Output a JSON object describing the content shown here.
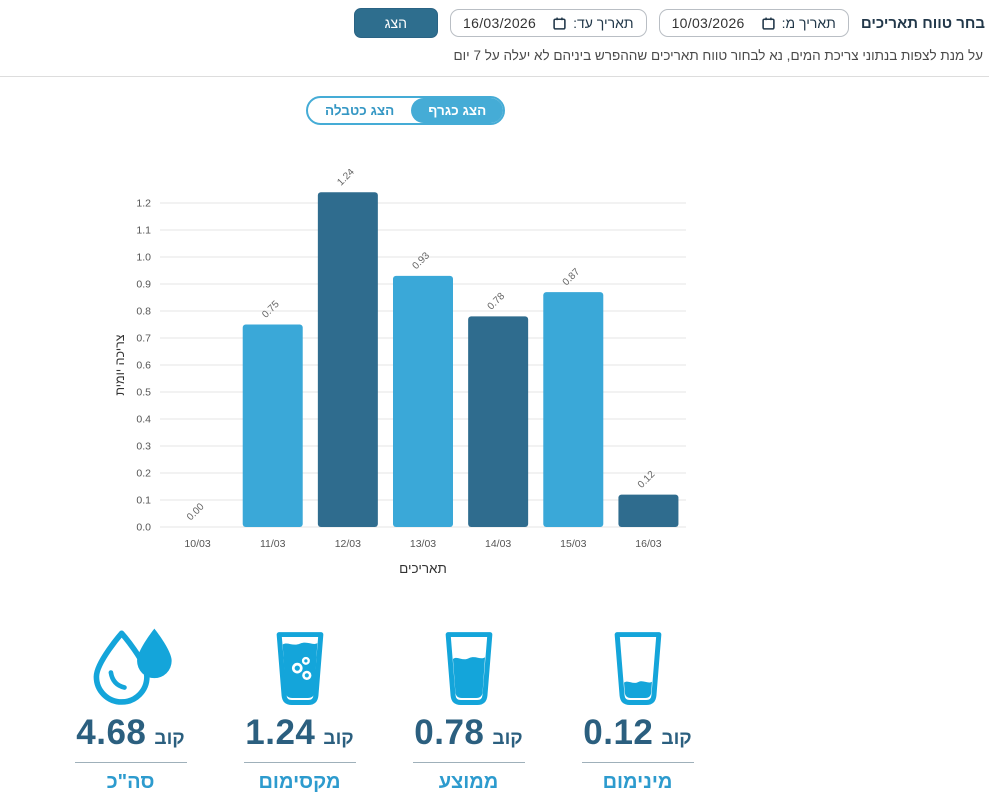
{
  "header": {
    "title": "בחר טווח תאריכים",
    "date_from": {
      "label": "תאריך מ:",
      "value": "10/03/2026"
    },
    "date_to": {
      "label": "תאריך עד:",
      "value": "16/03/2026"
    },
    "show_button": "הצג",
    "subtitle": "על מנת לצפות בנתוני צריכת המים, נא לבחור טווח תאריכים שההפרש ביניהם לא יעלה על 7 יום"
  },
  "view_toggle": {
    "graph_label": "הצג כגרף",
    "table_label": "הצג כטבלה",
    "active": "graph"
  },
  "chart_data": {
    "type": "bar",
    "categories": [
      "10/03",
      "11/03",
      "12/03",
      "13/03",
      "14/03",
      "15/03",
      "16/03"
    ],
    "values": [
      0.0,
      0.75,
      1.24,
      0.93,
      0.78,
      0.87,
      0.12
    ],
    "value_labels": [
      "0.00",
      "0.75",
      "1.24",
      "0.93",
      "0.78",
      "0.87",
      "0.12"
    ],
    "bar_colors": [
      "#3aa8d8",
      "#3aa8d8",
      "#2f6c8e",
      "#3aa8d8",
      "#2f6c8e",
      "#3aa8d8",
      "#2f6c8e"
    ],
    "title": "",
    "xlabel": "תאריכים",
    "ylabel": "צריכה יומית",
    "ylim": [
      0,
      1.2
    ],
    "ytick_step": 0.1,
    "grid": true,
    "legend": false
  },
  "stats": [
    {
      "id": "min",
      "icon": "glass-low-icon",
      "value": "0.12",
      "unit": "קוב",
      "label": "מינימום"
    },
    {
      "id": "avg",
      "icon": "glass-medium-icon",
      "value": "0.78",
      "unit": "קוב",
      "label": "ממוצע"
    },
    {
      "id": "max",
      "icon": "glass-full-icon",
      "value": "1.24",
      "unit": "קוב",
      "label": "מקסימום"
    },
    {
      "id": "total",
      "icon": "water-drop-icon",
      "value": "4.68",
      "unit": "קוב",
      "label": "סה\"כ"
    }
  ],
  "colors": {
    "accent_dark": "#2e6e8e",
    "accent_light": "#3aa8d8",
    "toggle_active": "#45acd6",
    "icon_cyan": "#14a5da",
    "stat_value": "#2b5f7f",
    "stat_label": "#2d9bce",
    "gridline": "#e9e9e9"
  }
}
